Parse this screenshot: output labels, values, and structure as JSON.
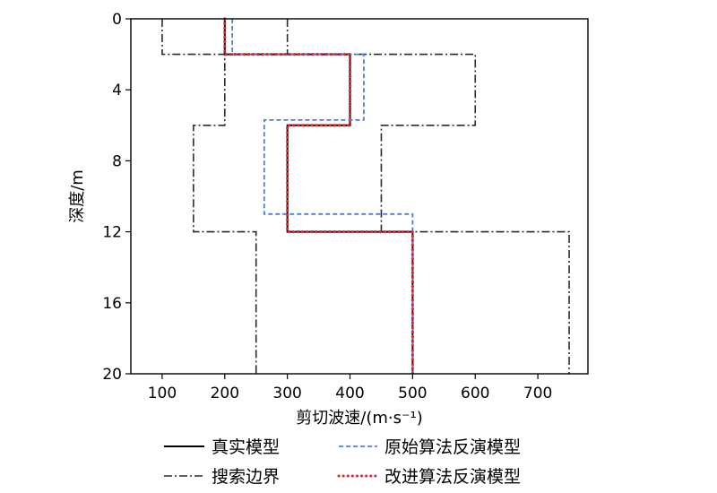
{
  "chart_data": {
    "type": "line",
    "xlabel": "剪切波速/(m·s⁻¹)",
    "ylabel": "深度/m",
    "xlim": [
      50,
      780
    ],
    "ylim": [
      0,
      20
    ],
    "y_inverted": true,
    "xticks": [
      100,
      200,
      300,
      400,
      500,
      600,
      700
    ],
    "yticks": [
      0,
      4,
      8,
      12,
      16,
      20
    ],
    "grid": false,
    "legend_position": "bottom",
    "series": [
      {
        "name": "真实模型",
        "color": "#000000",
        "dash": "solid",
        "points": [
          [
            200,
            0
          ],
          [
            200,
            2
          ],
          [
            400,
            2
          ],
          [
            400,
            6
          ],
          [
            300,
            6
          ],
          [
            300,
            12
          ],
          [
            500,
            12
          ],
          [
            500,
            20
          ]
        ]
      },
      {
        "name": "原始算法反演模型",
        "color": "#4f7fd9",
        "dash": "dashed",
        "points": [
          [
            212,
            0
          ],
          [
            212,
            2
          ],
          [
            422,
            2
          ],
          [
            422,
            5.7
          ],
          [
            263,
            5.7
          ],
          [
            263,
            11
          ],
          [
            500,
            11
          ],
          [
            500,
            20
          ]
        ]
      },
      {
        "name": "改进算法反演模型",
        "color": "#e8232a",
        "dash": "dotted",
        "points": [
          [
            200,
            0
          ],
          [
            200,
            2
          ],
          [
            400,
            2
          ],
          [
            400,
            6
          ],
          [
            300,
            6
          ],
          [
            300,
            12
          ],
          [
            500,
            12
          ],
          [
            500,
            20
          ]
        ]
      }
    ],
    "boundaries": {
      "name": "搜索边界",
      "color": "#2b2b2b",
      "dash": "dashdot",
      "lower": [
        [
          100,
          0
        ],
        [
          100,
          2
        ],
        [
          200,
          2
        ],
        [
          200,
          6
        ],
        [
          150,
          6
        ],
        [
          150,
          12
        ],
        [
          250,
          12
        ],
        [
          250,
          20
        ]
      ],
      "upper": [
        [
          300,
          0
        ],
        [
          300,
          2
        ],
        [
          600,
          2
        ],
        [
          600,
          6
        ],
        [
          450,
          6
        ],
        [
          450,
          12
        ],
        [
          750,
          12
        ],
        [
          750,
          20
        ]
      ]
    }
  },
  "legend": {
    "items": [
      {
        "label": "真实模型"
      },
      {
        "label": "原始算法反演模型"
      },
      {
        "label": "搜索边界"
      },
      {
        "label": "改进算法反演模型"
      }
    ]
  }
}
